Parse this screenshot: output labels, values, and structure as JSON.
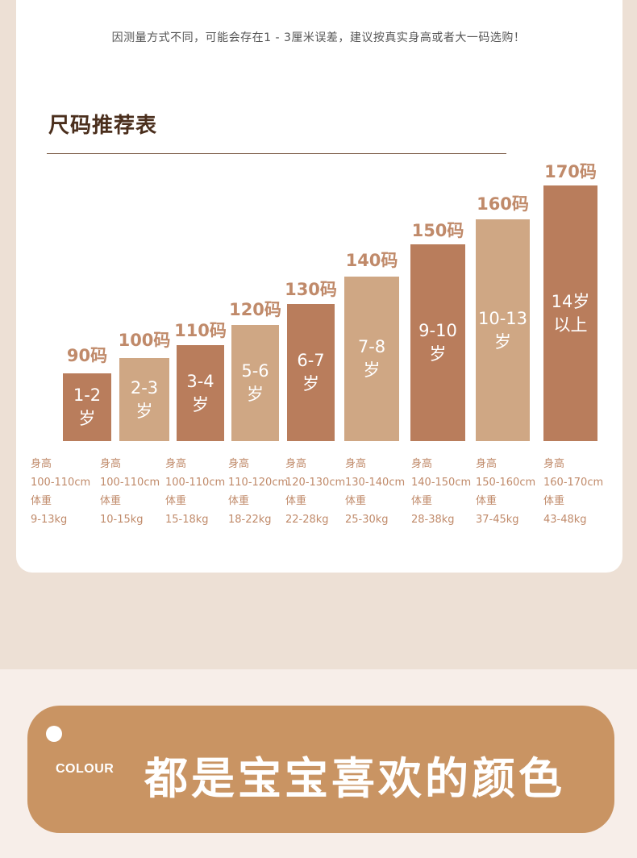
{
  "header": {
    "note": "因测量方式不同，可能会存在1 - 3厘米误差，建议按真实身高或者大一码选购！"
  },
  "table": {
    "title": "尺码推荐表",
    "height_label": "身高",
    "weight_label": "体重",
    "items": [
      {
        "size": "90码",
        "age": "1-2\n岁",
        "height": "100-110cm",
        "weight": "9-13kg"
      },
      {
        "size": "100码",
        "age": "2-3\n岁",
        "height": "100-110cm",
        "weight": "10-15kg"
      },
      {
        "size": "110码",
        "age": "3-4\n岁",
        "height": "100-110cm",
        "weight": "15-18kg"
      },
      {
        "size": "120码",
        "age": "5-6\n岁",
        "height": "110-120cm",
        "weight": "18-22kg"
      },
      {
        "size": "130码",
        "age": "6-7\n岁",
        "height": "120-130cm",
        "weight": "22-28kg"
      },
      {
        "size": "140码",
        "age": "7-8\n岁",
        "height": "130-140cm",
        "weight": "25-30kg"
      },
      {
        "size": "150码",
        "age": "9-10\n岁",
        "height": "140-150cm",
        "weight": "28-38kg"
      },
      {
        "size": "160码",
        "age": "10-13\n岁",
        "height": "150-160cm",
        "weight": "37-45kg"
      },
      {
        "size": "170码",
        "age": "14岁\n以上",
        "height": "160-170cm",
        "weight": "43-48kg"
      }
    ]
  },
  "colors": {
    "dark_bar": "#b97d5c",
    "light_bar": "#cfa784",
    "accent_text": "#c08a6a",
    "banner": "#c99463"
  },
  "banner": {
    "label": "COLOUR",
    "text": "都是宝宝喜欢的颜色"
  }
}
